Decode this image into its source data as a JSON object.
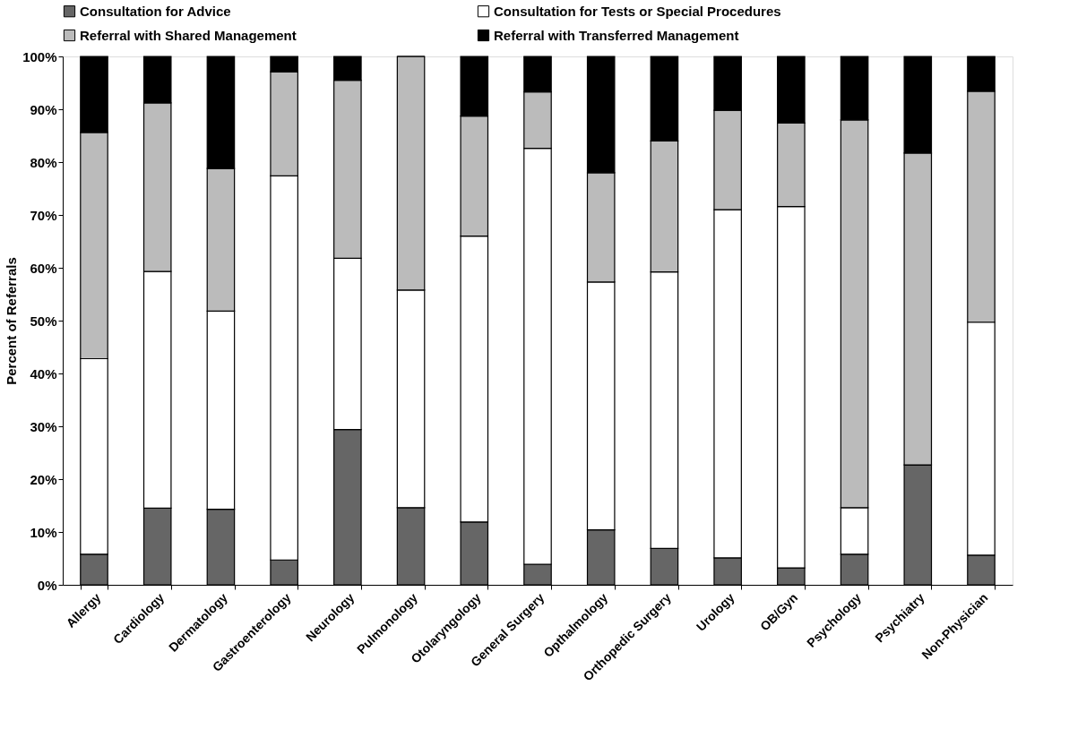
{
  "chart_data": {
    "type": "bar",
    "stacked": true,
    "ylabel": "Percent of Referrals",
    "categories": [
      "Allergy",
      "Cardiology",
      "Dermatology",
      "Gastroenterology",
      "Neurology",
      "Pulmonology",
      "Otolaryngology",
      "General Surgery",
      "Opthalmology",
      "Orthopedic Surgery",
      "Urology",
      "OB/Gyn",
      "Psychology",
      "Psychiatry",
      "Non-Physician"
    ],
    "series": [
      {
        "name": "Consultation for Advice",
        "color": "#666666",
        "values": [
          5.8,
          14.5,
          14.3,
          4.7,
          29.4,
          14.6,
          11.9,
          3.9,
          10.4,
          6.9,
          5.1,
          3.2,
          5.8,
          22.7,
          5.6
        ]
      },
      {
        "name": "Consultation for Tests or Special Procedures",
        "color": "#ffffff",
        "values": [
          37.0,
          44.8,
          37.5,
          72.7,
          32.4,
          41.2,
          54.1,
          78.7,
          46.9,
          52.3,
          65.9,
          68.4,
          8.8,
          0,
          44.1
        ]
      },
      {
        "name": "Referral with Shared Management",
        "color": "#bbbbbb",
        "values": [
          42.8,
          31.9,
          27.0,
          19.7,
          33.7,
          44.2,
          22.7,
          10.7,
          20.7,
          24.8,
          18.8,
          15.8,
          73.4,
          59.0,
          43.7
        ]
      },
      {
        "name": "Referral with Transferred Management",
        "color": "#000000",
        "values": [
          14.4,
          8.8,
          21.2,
          2.9,
          4.5,
          0,
          11.3,
          6.7,
          22.0,
          16.0,
          10.2,
          12.6,
          12.0,
          18.3,
          6.6
        ]
      }
    ],
    "ylim": [
      0,
      100
    ],
    "yticks": [
      {
        "value": 0,
        "label": "0%"
      },
      {
        "value": 10,
        "label": "10%"
      },
      {
        "value": 20,
        "label": "20%"
      },
      {
        "value": 30,
        "label": "30%"
      },
      {
        "value": 40,
        "label": "40%"
      },
      {
        "value": 50,
        "label": "50%"
      },
      {
        "value": 60,
        "label": "60%"
      },
      {
        "value": 70,
        "label": "70%"
      },
      {
        "value": 80,
        "label": "80%"
      },
      {
        "value": 90,
        "label": "90%"
      },
      {
        "value": 100,
        "label": "100%"
      }
    ],
    "grid": false,
    "legend": "top"
  }
}
